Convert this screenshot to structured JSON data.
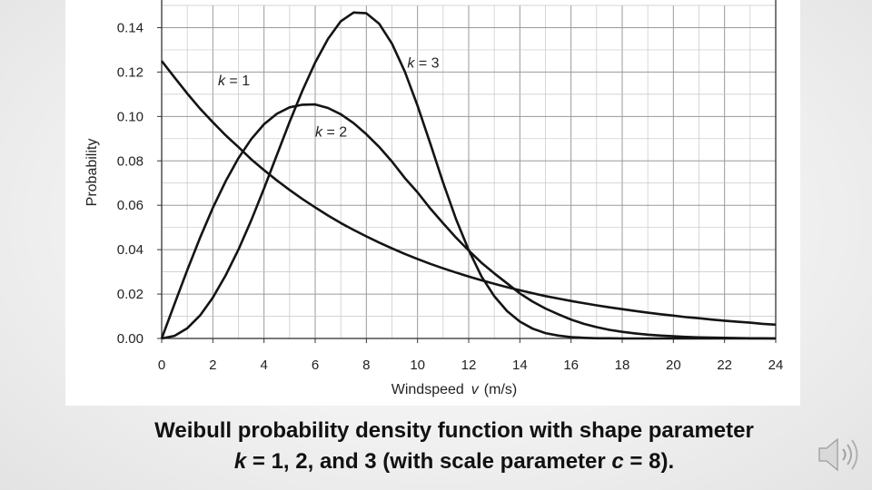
{
  "caption": {
    "line1": "Weibull probability density function with shape parameter",
    "line2_k": "k",
    "line2_mid": " = 1, 2, and 3  (with scale parameter ",
    "line2_c": "c",
    "line2_end": " = 8)."
  },
  "chart_data": {
    "type": "line",
    "title": "",
    "xlabel": "Windspeed",
    "xlabel_var": "v",
    "xlabel_unit": "(m/s)",
    "ylabel": "Probability",
    "xlim": [
      0,
      24
    ],
    "ylim": [
      0,
      0.15
    ],
    "xticks": [
      0,
      2,
      4,
      6,
      8,
      10,
      12,
      14,
      16,
      18,
      20,
      22,
      24
    ],
    "xtick_labels": [
      "0",
      "2",
      "4",
      "6",
      "8",
      "10",
      "12",
      "14",
      "16",
      "18",
      "20",
      "22",
      "24"
    ],
    "yticks": [
      0,
      0.02,
      0.04,
      0.06,
      0.08,
      0.1,
      0.12,
      0.14
    ],
    "ytick_labels": [
      "0.00",
      "0.02",
      "0.04",
      "0.06",
      "0.08",
      "0.10",
      "0.12",
      "0.14"
    ],
    "grid": true,
    "x": [
      0,
      0.5,
      1,
      1.5,
      2,
      2.5,
      3,
      3.5,
      4,
      4.5,
      5,
      5.5,
      6,
      6.5,
      7,
      7.5,
      8,
      8.5,
      9,
      9.5,
      10,
      10.5,
      11,
      11.5,
      12,
      12.5,
      13,
      13.5,
      14,
      14.5,
      15,
      15.5,
      16,
      16.5,
      17,
      17.5,
      18,
      18.5,
      19,
      19.5,
      20,
      20.5,
      21,
      21.5,
      22,
      22.5,
      23,
      23.5,
      24
    ],
    "series": [
      {
        "name_k": "k",
        "name_rest": " = 1",
        "label_at": [
          2.2,
          0.116
        ],
        "values": [
          0.125,
          0.1176,
          0.1103,
          0.1035,
          0.0974,
          0.0915,
          0.0862,
          0.0807,
          0.0758,
          0.0712,
          0.0669,
          0.0628,
          0.059,
          0.0554,
          0.052,
          0.0489,
          0.046,
          0.0432,
          0.0406,
          0.0381,
          0.0358,
          0.0336,
          0.0316,
          0.0297,
          0.0279,
          0.0262,
          0.0246,
          0.0231,
          0.0217,
          0.0204,
          0.0191,
          0.018,
          0.0169,
          0.0159,
          0.0149,
          0.014,
          0.0132,
          0.0124,
          0.0116,
          0.0109,
          0.0103,
          0.0096,
          0.0091,
          0.0085,
          0.008,
          0.0075,
          0.0071,
          0.0066,
          0.0062
        ]
      },
      {
        "name_k": "k",
        "name_rest": " = 2",
        "label_at": [
          6.0,
          0.093
        ],
        "values": [
          0,
          0.0155,
          0.0308,
          0.0454,
          0.0588,
          0.0708,
          0.0812,
          0.0898,
          0.0965,
          0.1012,
          0.1041,
          0.1053,
          0.1054,
          0.1038,
          0.101,
          0.097,
          0.092,
          0.0863,
          0.0797,
          0.0723,
          0.0658,
          0.0585,
          0.0519,
          0.0455,
          0.0396,
          0.0341,
          0.0293,
          0.0248,
          0.0203,
          0.0166,
          0.0135,
          0.0109,
          0.0085,
          0.0066,
          0.0051,
          0.0039,
          0.003,
          0.0023,
          0.0017,
          0.0013,
          0.001,
          0.0007,
          0.0005,
          0.0004,
          0.0003,
          0.0002,
          0.0001,
          0.0001,
          0
        ]
      },
      {
        "name_k": "k",
        "name_rest": " = 3",
        "label_at": [
          9.6,
          0.124
        ],
        "values": [
          0,
          0.0012,
          0.0046,
          0.0104,
          0.0184,
          0.0284,
          0.04,
          0.0532,
          0.0676,
          0.0826,
          0.0975,
          0.1116,
          0.1243,
          0.1349,
          0.1429,
          0.1468,
          0.1465,
          0.1418,
          0.1328,
          0.1203,
          0.1048,
          0.0877,
          0.0702,
          0.0539,
          0.0398,
          0.0279,
          0.019,
          0.0123,
          0.0076,
          0.0044,
          0.0024,
          0.0013,
          0.0006,
          0.0003,
          0.0001,
          0.0001,
          0,
          0,
          0,
          0,
          0,
          0,
          0,
          0,
          0,
          0,
          0,
          0,
          0
        ]
      }
    ]
  }
}
